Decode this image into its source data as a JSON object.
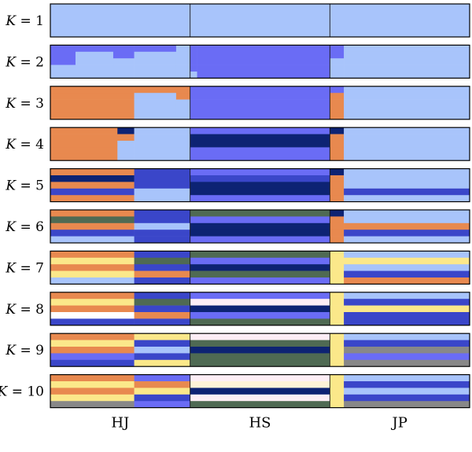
{
  "chart_data": {
    "type": "bar",
    "subtype": "stacked-ancestry",
    "populations": [
      "HJ",
      "HS",
      "JP"
    ],
    "rows": [
      {
        "k": "1",
        "segments": [
          {
            "from": 0,
            "to": 1,
            "colors": [
              "#a8c4fb"
            ]
          }
        ]
      },
      {
        "k": "2",
        "segments": [
          {
            "from": 0.0,
            "to": 0.06,
            "colors": [
              "#6a6cf5",
              "#6a6cf5",
              "#6a6cf5",
              "#a8c4fb",
              "#a8c4fb"
            ]
          },
          {
            "from": 0.06,
            "to": 0.15,
            "colors": [
              "#6a6cf5",
              "#a8c4fb",
              "#a8c4fb",
              "#a8c4fb",
              "#a8c4fb"
            ]
          },
          {
            "from": 0.15,
            "to": 0.2,
            "colors": [
              "#6a6cf5",
              "#6a6cf5",
              "#a8c4fb",
              "#a8c4fb",
              "#a8c4fb"
            ]
          },
          {
            "from": 0.2,
            "to": 0.3,
            "colors": [
              "#6a6cf5",
              "#a8c4fb",
              "#a8c4fb",
              "#a8c4fb",
              "#a8c4fb"
            ]
          },
          {
            "from": 0.3,
            "to": 0.333,
            "colors": [
              "#a8c4fb",
              "#a8c4fb",
              "#a8c4fb",
              "#a8c4fb",
              "#a8c4fb"
            ]
          },
          {
            "from": 0.333,
            "to": 0.35,
            "colors": [
              "#6a6cf5",
              "#6a6cf5",
              "#6a6cf5",
              "#6a6cf5",
              "#a8c4fb"
            ]
          },
          {
            "from": 0.35,
            "to": 0.667,
            "colors": [
              "#6a6cf5",
              "#6a6cf5",
              "#6a6cf5",
              "#6a6cf5",
              "#6a6cf5"
            ]
          },
          {
            "from": 0.667,
            "to": 0.7,
            "colors": [
              "#6a6cf5",
              "#6a6cf5",
              "#a8c4fb",
              "#a8c4fb",
              "#a8c4fb"
            ]
          },
          {
            "from": 0.7,
            "to": 1.0,
            "colors": [
              "#a8c4fb",
              "#a8c4fb",
              "#a8c4fb",
              "#a8c4fb",
              "#a8c4fb"
            ]
          }
        ]
      },
      {
        "k": "3",
        "segments": [
          {
            "from": 0.0,
            "to": 0.2,
            "colors": [
              "#e8894f",
              "#e8894f",
              "#e8894f",
              "#e8894f",
              "#e8894f"
            ]
          },
          {
            "from": 0.2,
            "to": 0.3,
            "colors": [
              "#e8894f",
              "#a8c4fb",
              "#a8c4fb",
              "#a8c4fb",
              "#a8c4fb"
            ]
          },
          {
            "from": 0.3,
            "to": 0.333,
            "colors": [
              "#e8894f",
              "#e8894f",
              "#a8c4fb",
              "#a8c4fb",
              "#a8c4fb"
            ]
          },
          {
            "from": 0.333,
            "to": 0.667,
            "colors": [
              "#6a6cf5",
              "#6a6cf5",
              "#6a6cf5",
              "#6a6cf5",
              "#6a6cf5"
            ]
          },
          {
            "from": 0.667,
            "to": 0.7,
            "colors": [
              "#6a6cf5",
              "#e8894f",
              "#e8894f",
              "#e8894f",
              "#e8894f"
            ]
          },
          {
            "from": 0.7,
            "to": 1.0,
            "colors": [
              "#a8c4fb",
              "#a8c4fb",
              "#a8c4fb",
              "#a8c4fb",
              "#a8c4fb"
            ]
          }
        ]
      },
      {
        "k": "4",
        "segments": [
          {
            "from": 0.0,
            "to": 0.16,
            "colors": [
              "#e8894f",
              "#e8894f",
              "#e8894f",
              "#e8894f",
              "#e8894f"
            ]
          },
          {
            "from": 0.16,
            "to": 0.2,
            "colors": [
              "#0d2373",
              "#e8894f",
              "#a8c4fb",
              "#a8c4fb",
              "#a8c4fb"
            ]
          },
          {
            "from": 0.2,
            "to": 0.333,
            "colors": [
              "#a8c4fb",
              "#a8c4fb",
              "#a8c4fb",
              "#a8c4fb",
              "#a8c4fb"
            ]
          },
          {
            "from": 0.333,
            "to": 0.667,
            "colors": [
              "#6a6cf5",
              "#0d2373",
              "#0d2373",
              "#6a6cf5",
              "#6a6cf5"
            ]
          },
          {
            "from": 0.667,
            "to": 0.7,
            "colors": [
              "#0d2373",
              "#e8894f",
              "#e8894f",
              "#e8894f",
              "#e8894f"
            ]
          },
          {
            "from": 0.7,
            "to": 1.0,
            "colors": [
              "#a8c4fb",
              "#a8c4fb",
              "#a8c4fb",
              "#a8c4fb",
              "#a8c4fb"
            ]
          }
        ]
      },
      {
        "k": "5",
        "segments": [
          {
            "from": 0.0,
            "to": 0.2,
            "colors": [
              "#e8894f",
              "#0d2373",
              "#e8894f",
              "#3a46c9",
              "#e8894f"
            ]
          },
          {
            "from": 0.2,
            "to": 0.333,
            "colors": [
              "#3a46c9",
              "#3a46c9",
              "#3a46c9",
              "#a8c4fb",
              "#a8c4fb"
            ]
          },
          {
            "from": 0.333,
            "to": 0.667,
            "colors": [
              "#6a6cf5",
              "#3a46c9",
              "#0d2373",
              "#0d2373",
              "#6a6cf5"
            ]
          },
          {
            "from": 0.667,
            "to": 0.7,
            "colors": [
              "#0d2373",
              "#e8894f",
              "#e8894f",
              "#e8894f",
              "#e8894f"
            ]
          },
          {
            "from": 0.7,
            "to": 1.0,
            "colors": [
              "#a8c4fb",
              "#a8c4fb",
              "#a8c4fb",
              "#3a46c9",
              "#a8c4fb"
            ]
          }
        ]
      },
      {
        "k": "6",
        "segments": [
          {
            "from": 0.0,
            "to": 0.2,
            "colors": [
              "#e8894f",
              "#4f6a53",
              "#e8894f",
              "#3a46c9",
              "#a8c4fb"
            ]
          },
          {
            "from": 0.2,
            "to": 0.333,
            "colors": [
              "#3a46c9",
              "#3a46c9",
              "#a8c4fb",
              "#3a46c9",
              "#3a46c9"
            ]
          },
          {
            "from": 0.333,
            "to": 0.667,
            "colors": [
              "#4f6a53",
              "#6a6cf5",
              "#0d2373",
              "#0d2373",
              "#6a6cf5"
            ]
          },
          {
            "from": 0.667,
            "to": 0.7,
            "colors": [
              "#0d2373",
              "#e8894f",
              "#e8894f",
              "#e8894f",
              "#e8894f"
            ]
          },
          {
            "from": 0.7,
            "to": 1.0,
            "colors": [
              "#a8c4fb",
              "#a8c4fb",
              "#e8894f",
              "#3a46c9",
              "#a8c4fb"
            ]
          }
        ]
      },
      {
        "k": "7",
        "segments": [
          {
            "from": 0.0,
            "to": 0.2,
            "colors": [
              "#e8894f",
              "#fbe88a",
              "#e8894f",
              "#fbe88a",
              "#a8c4fb"
            ]
          },
          {
            "from": 0.2,
            "to": 0.333,
            "colors": [
              "#3a46c9",
              "#4f6a53",
              "#3a46c9",
              "#e8894f",
              "#3a46c9"
            ]
          },
          {
            "from": 0.333,
            "to": 0.667,
            "colors": [
              "#4f6a53",
              "#6a6cf5",
              "#0d2373",
              "#4f6a53",
              "#6a6cf5"
            ]
          },
          {
            "from": 0.667,
            "to": 0.7,
            "colors": [
              "#fbe88a",
              "#fbe88a",
              "#fbe88a",
              "#fbe88a",
              "#fbe88a"
            ]
          },
          {
            "from": 0.7,
            "to": 1.0,
            "colors": [
              "#a8c4fb",
              "#fbe88a",
              "#a8c4fb",
              "#3a46c9",
              "#e8894f"
            ]
          }
        ]
      },
      {
        "k": "8",
        "segments": [
          {
            "from": 0.0,
            "to": 0.2,
            "colors": [
              "#e8894f",
              "#fbe88a",
              "#e8894f",
              "#ffffff",
              "#3a46c9"
            ]
          },
          {
            "from": 0.2,
            "to": 0.333,
            "colors": [
              "#3a46c9",
              "#4f6a53",
              "#3a46c9",
              "#e8894f",
              "#3a46c9"
            ]
          },
          {
            "from": 0.333,
            "to": 0.667,
            "colors": [
              "#6a6cf5",
              "#fdeef5",
              "#0d2373",
              "#6a6cf5",
              "#4f6a53"
            ]
          },
          {
            "from": 0.667,
            "to": 0.7,
            "colors": [
              "#fbe88a",
              "#fbe88a",
              "#fbe88a",
              "#fbe88a",
              "#fbe88a"
            ]
          },
          {
            "from": 0.7,
            "to": 1.0,
            "colors": [
              "#a8c4fb",
              "#3a46c9",
              "#fbe88a",
              "#3a46c9",
              "#3a46c9"
            ]
          }
        ]
      },
      {
        "k": "9",
        "segments": [
          {
            "from": 0.0,
            "to": 0.2,
            "colors": [
              "#e8894f",
              "#fbe88a",
              "#e8894f",
              "#6a6cf5",
              "#3a46c9"
            ]
          },
          {
            "from": 0.2,
            "to": 0.333,
            "colors": [
              "#fbe88a",
              "#3a46c9",
              "#a8c4fb",
              "#3a46c9",
              "#fbe88a"
            ]
          },
          {
            "from": 0.333,
            "to": 0.667,
            "colors": [
              "#fdeef5",
              "#4f6a53",
              "#0d2373",
              "#4f6a53",
              "#4f6a53"
            ]
          },
          {
            "from": 0.667,
            "to": 0.7,
            "colors": [
              "#fbe88a",
              "#fbe88a",
              "#fbe88a",
              "#fbe88a",
              "#fbe88a"
            ]
          },
          {
            "from": 0.7,
            "to": 1.0,
            "colors": [
              "#a8c4fb",
              "#3a46c9",
              "#888888",
              "#6a6cf5",
              "#888888"
            ]
          }
        ]
      },
      {
        "k": "10",
        "segments": [
          {
            "from": 0.0,
            "to": 0.2,
            "colors": [
              "#e8894f",
              "#fbe88a",
              "#e8894f",
              "#fbe88a",
              "#888888"
            ]
          },
          {
            "from": 0.2,
            "to": 0.333,
            "colors": [
              "#6a6cf5",
              "#e8894f",
              "#fbe88a",
              "#3a46c9",
              "#6a6cf5"
            ]
          },
          {
            "from": 0.333,
            "to": 0.667,
            "colors": [
              "#fdeef5",
              "#fff3d8",
              "#0d2373",
              "#fdeef5",
              "#4f6a53"
            ]
          },
          {
            "from": 0.667,
            "to": 0.7,
            "colors": [
              "#fbe88a",
              "#fbe88a",
              "#fbe88a",
              "#fbe88a",
              "#fbe88a"
            ]
          },
          {
            "from": 0.7,
            "to": 1.0,
            "colors": [
              "#a8c4fb",
              "#3a46c9",
              "#a8c4fb",
              "#3a46c9",
              "#888888"
            ]
          }
        ]
      }
    ]
  }
}
